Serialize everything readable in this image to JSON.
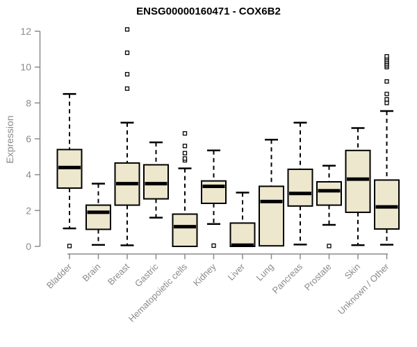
{
  "title": "ENSG00000160471 - COX6B2",
  "colors": {
    "background": "#ffffff",
    "box_fill": "#ece7cd",
    "box_stroke": "#000000",
    "median": "#000000",
    "whisker": "#000000",
    "outlier_fill": "#ffffff",
    "axis": "#8a8a8a",
    "tick_label": "#8a8a8a",
    "title_text": "#000000"
  },
  "chart_data": {
    "type": "boxplot",
    "title": "ENSG00000160471 - COX6B2",
    "xlabel": "",
    "ylabel": "Expression",
    "ylim": [
      0,
      12
    ],
    "yticks": [
      0,
      2,
      4,
      6,
      8,
      10,
      12
    ],
    "grid": false,
    "legend": "none",
    "x_label_rotation_deg": 45,
    "categories": [
      "Bladder",
      "Brain",
      "Breast",
      "Gastric",
      "Hematopoietic cells",
      "Kidney",
      "Liver",
      "Lung",
      "Pancreas",
      "Prostate",
      "Skin",
      "Unknown / Other"
    ],
    "boxes": [
      {
        "category": "Bladder",
        "min": 1.0,
        "q1": 3.25,
        "median": 4.4,
        "q3": 5.4,
        "max": 8.5,
        "outliers": [
          0.02
        ]
      },
      {
        "category": "Brain",
        "min": 0.08,
        "q1": 0.95,
        "median": 1.9,
        "q3": 2.3,
        "max": 3.5,
        "outliers": []
      },
      {
        "category": "Breast",
        "min": 0.06,
        "q1": 2.3,
        "median": 3.5,
        "q3": 4.65,
        "max": 6.9,
        "outliers": [
          8.8,
          9.6,
          10.8,
          12.1
        ]
      },
      {
        "category": "Gastric",
        "min": 1.6,
        "q1": 2.65,
        "median": 3.5,
        "q3": 4.55,
        "max": 5.8,
        "outliers": []
      },
      {
        "category": "Hematopoietic cells",
        "min": 0.0,
        "q1": 0.0,
        "median": 1.1,
        "q3": 1.8,
        "max": 4.35,
        "outliers": [
          4.8,
          4.9,
          5.2,
          5.6,
          6.3
        ]
      },
      {
        "category": "Kidney",
        "min": 1.25,
        "q1": 2.4,
        "median": 3.35,
        "q3": 3.65,
        "max": 5.35,
        "outliers": [
          0.04
        ]
      },
      {
        "category": "Liver",
        "min": 0.0,
        "q1": 0.0,
        "median": 0.07,
        "q3": 1.3,
        "max": 3.0,
        "outliers": []
      },
      {
        "category": "Lung",
        "min": 0.0,
        "q1": 0.03,
        "median": 2.5,
        "q3": 3.35,
        "max": 5.95,
        "outliers": []
      },
      {
        "category": "Pancreas",
        "min": 0.1,
        "q1": 2.25,
        "median": 2.95,
        "q3": 4.3,
        "max": 6.9,
        "outliers": []
      },
      {
        "category": "Prostate",
        "min": 1.2,
        "q1": 2.3,
        "median": 3.1,
        "q3": 3.6,
        "max": 4.5,
        "outliers": [
          0.02
        ]
      },
      {
        "category": "Skin",
        "min": 0.07,
        "q1": 1.9,
        "median": 3.75,
        "q3": 5.35,
        "max": 6.6,
        "outliers": []
      },
      {
        "category": "Unknown / Other",
        "min": 0.09,
        "q1": 0.97,
        "median": 2.2,
        "q3": 3.7,
        "max": 7.55,
        "outliers": [
          8.0,
          8.2,
          8.5,
          9.2,
          10.0,
          10.1,
          10.2,
          10.3,
          10.4,
          10.5,
          10.6
        ]
      }
    ]
  }
}
